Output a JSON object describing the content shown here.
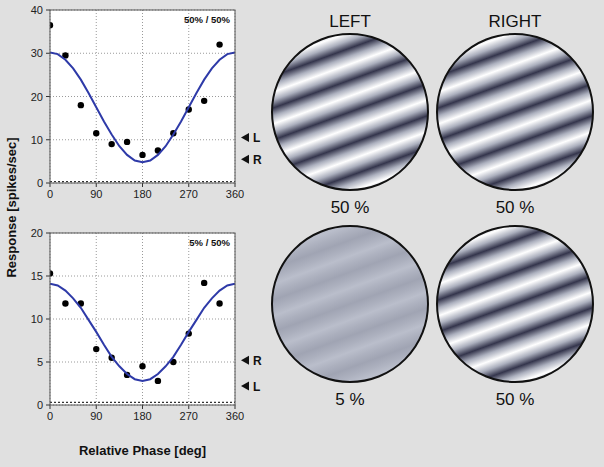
{
  "chart_data": [
    {
      "type": "scatter",
      "annotation": "50% / 50%",
      "xlim": [
        0,
        360
      ],
      "xticks": [
        0,
        90,
        180,
        270,
        360
      ],
      "ylim": [
        0,
        40
      ],
      "yticks": [
        0,
        10,
        20,
        30,
        40
      ],
      "grid": true,
      "baseline": 0.3,
      "markers": [
        {
          "label": "L",
          "value": 10.5
        },
        {
          "label": "R",
          "value": 5.5
        }
      ],
      "series": [
        {
          "type": "scatter",
          "color": "#000000",
          "marker": "circle",
          "x": [
            0,
            30,
            60,
            90,
            120,
            150,
            180,
            210,
            240,
            270,
            300,
            330
          ],
          "values": [
            36.5,
            29.5,
            18,
            11.5,
            9,
            9.5,
            6.5,
            7.5,
            11.5,
            17,
            19,
            32
          ]
        },
        {
          "type": "line",
          "color": "#2e3aa8",
          "line_style": "solid",
          "x": [
            0,
            15,
            30,
            45,
            60,
            75,
            90,
            105,
            120,
            135,
            150,
            165,
            180,
            195,
            210,
            225,
            240,
            255,
            270,
            285,
            300,
            315,
            330,
            345,
            360
          ],
          "values": [
            30.2,
            29.8,
            28.5,
            26.5,
            23.9,
            20.8,
            17.5,
            14.2,
            11.2,
            8.5,
            6.5,
            5.2,
            4.8,
            5.2,
            6.5,
            8.5,
            11.2,
            14.2,
            17.5,
            20.8,
            23.9,
            26.5,
            28.5,
            29.8,
            30.2
          ]
        }
      ]
    },
    {
      "type": "scatter",
      "annotation": "5% / 50%",
      "xlabel": "Relative Phase [deg]",
      "ylabel": "Response [spikes/sec]",
      "xlim": [
        0,
        360
      ],
      "xticks": [
        0,
        90,
        180,
        270,
        360
      ],
      "ylim": [
        0,
        20
      ],
      "yticks": [
        0,
        5,
        10,
        15,
        20
      ],
      "grid": true,
      "baseline": 0.3,
      "markers": [
        {
          "label": "R",
          "value": 5.2
        },
        {
          "label": "L",
          "value": 2.2
        }
      ],
      "series": [
        {
          "type": "scatter",
          "color": "#000000",
          "marker": "circle",
          "x": [
            0,
            30,
            60,
            90,
            120,
            150,
            180,
            210,
            240,
            270,
            300,
            330
          ],
          "values": [
            15.3,
            11.8,
            11.8,
            6.5,
            5.5,
            3.5,
            4.5,
            2.8,
            5,
            8.3,
            14.2,
            11.8
          ]
        },
        {
          "type": "line",
          "color": "#2e3aa8",
          "line_style": "solid",
          "x": [
            0,
            15,
            30,
            45,
            60,
            75,
            90,
            105,
            120,
            135,
            150,
            165,
            180,
            195,
            210,
            225,
            240,
            255,
            270,
            285,
            300,
            315,
            330,
            345,
            360
          ],
          "values": [
            14.1,
            13.9,
            13.3,
            12.4,
            11.3,
            9.9,
            8.5,
            7.0,
            5.6,
            4.5,
            3.6,
            3.0,
            2.8,
            3.0,
            3.6,
            4.5,
            5.6,
            7.0,
            8.5,
            9.9,
            11.3,
            12.4,
            13.3,
            13.9,
            14.1
          ]
        }
      ]
    }
  ],
  "stimuli": {
    "columns": [
      "LEFT",
      "RIGHT"
    ],
    "rows": [
      [
        {
          "contrast": 50,
          "label": "50 %"
        },
        {
          "contrast": 50,
          "label": "50 %"
        }
      ],
      [
        {
          "contrast": 5,
          "label": "5 %"
        },
        {
          "contrast": 50,
          "label": "50 %"
        }
      ]
    ]
  }
}
